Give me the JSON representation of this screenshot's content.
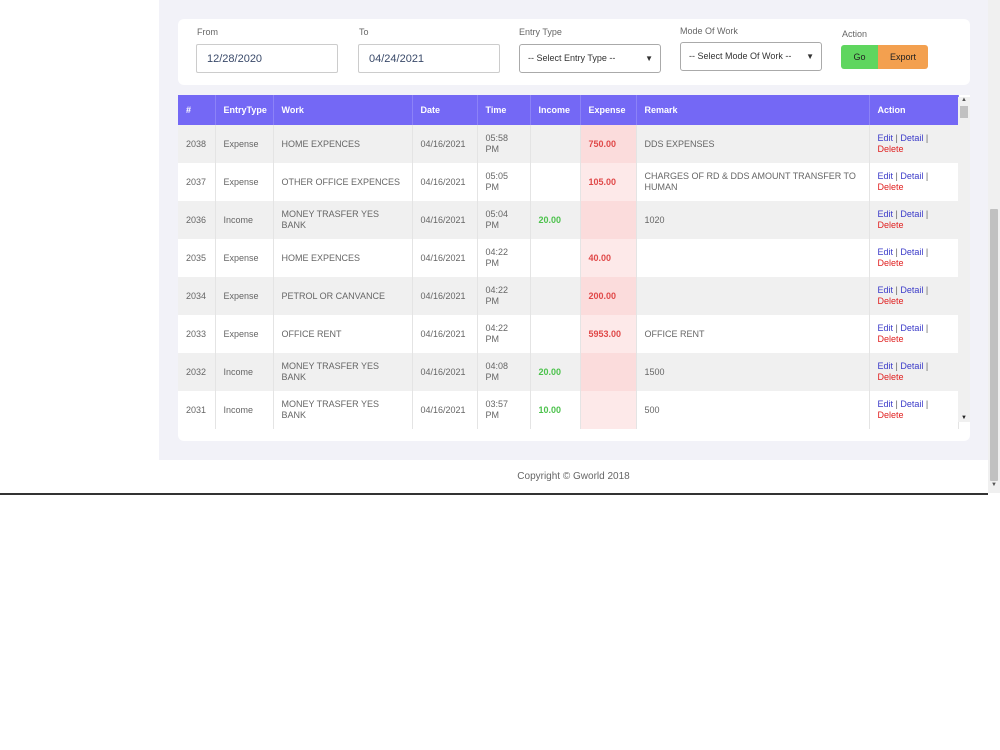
{
  "filters": {
    "from_label": "From",
    "from_value": "12/28/2020",
    "to_label": "To",
    "to_value": "04/24/2021",
    "entry_type_label": "Entry Type",
    "entry_type_selected": "-- Select Entry Type --",
    "mode_label": "Mode Of Work",
    "mode_selected": "-- Select Mode Of Work --",
    "action_label": "Action",
    "go_label": "Go",
    "export_label": "Export"
  },
  "table": {
    "headers": [
      "#",
      "EntryType",
      "Work",
      "Date",
      "Time",
      "Income",
      "Expense",
      "Remark",
      "Action"
    ],
    "rows": [
      {
        "id": "2038",
        "type": "Expense",
        "work": "HOME EXPENCES",
        "date": "04/16/2021",
        "time": "05:58 PM",
        "income": "",
        "expense": "750.00",
        "remark": "DDS EXPENSES"
      },
      {
        "id": "2037",
        "type": "Expense",
        "work": "OTHER OFFICE EXPENCES",
        "date": "04/16/2021",
        "time": "05:05 PM",
        "income": "",
        "expense": "105.00",
        "remark": "CHARGES OF RD & DDS AMOUNT TRANSFER TO HUMAN"
      },
      {
        "id": "2036",
        "type": "Income",
        "work": "MONEY TRASFER YES BANK",
        "date": "04/16/2021",
        "time": "05:04 PM",
        "income": "20.00",
        "expense": "",
        "remark": "1020"
      },
      {
        "id": "2035",
        "type": "Expense",
        "work": "HOME EXPENCES",
        "date": "04/16/2021",
        "time": "04:22 PM",
        "income": "",
        "expense": "40.00",
        "remark": ""
      },
      {
        "id": "2034",
        "type": "Expense",
        "work": "PETROL OR CANVANCE",
        "date": "04/16/2021",
        "time": "04:22 PM",
        "income": "",
        "expense": "200.00",
        "remark": ""
      },
      {
        "id": "2033",
        "type": "Expense",
        "work": "OFFICE RENT",
        "date": "04/16/2021",
        "time": "04:22 PM",
        "income": "",
        "expense": "5953.00",
        "remark": "OFFICE RENT"
      },
      {
        "id": "2032",
        "type": "Income",
        "work": "MONEY TRASFER YES BANK",
        "date": "04/16/2021",
        "time": "04:08 PM",
        "income": "20.00",
        "expense": "",
        "remark": "1500"
      },
      {
        "id": "2031",
        "type": "Income",
        "work": "MONEY TRASFER YES BANK",
        "date": "04/16/2021",
        "time": "03:57 PM",
        "income": "10.00",
        "expense": "",
        "remark": "500"
      }
    ],
    "action_edit": "Edit",
    "action_detail": "Detail",
    "action_delete": "Delete",
    "action_sep": "|"
  },
  "footer": {
    "copyright": "Copyright © Gworld 2018"
  },
  "icons": {
    "select_chevron": "chevron-down-icon",
    "scroll_up": "scroll-up-arrow-icon",
    "scroll_down": "scroll-down-arrow-icon"
  },
  "colors": {
    "header_bg": "#7468f5",
    "go_button": "#5fd65f",
    "export_button": "#f3a04f",
    "income_text": "#4cc24c",
    "expense_text": "#e04848",
    "delete_link": "#e02020",
    "link": "#3b3bc9"
  }
}
